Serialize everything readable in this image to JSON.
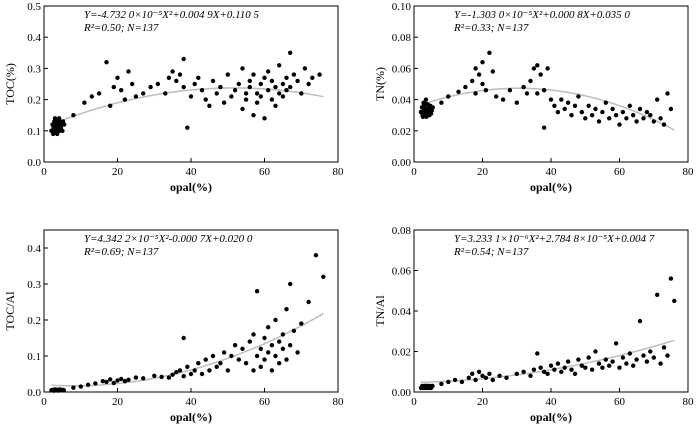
{
  "chart_data": [
    {
      "type": "scatter",
      "xlabel": "opal(%)",
      "ylabel": "TOC(%)",
      "xlim": [
        0,
        80
      ],
      "ylim": [
        0,
        0.5
      ],
      "xticks": [
        "0",
        "20",
        "40",
        "60",
        "80"
      ],
      "yticks": [
        "0.0",
        "0.1",
        "0.2",
        "0.3",
        "0.4",
        "0.5"
      ],
      "equation": "Y=-4.732 0×10⁻⁵X²+0.004 9X+0.110 5",
      "stats": "R²=0.50; N=137",
      "fit": {
        "type": "quadratic",
        "a": -4.732e-05,
        "b": 0.0049,
        "c": 0.1105,
        "x_range": [
          2,
          76
        ]
      },
      "series": [
        {
          "x": [
            2.0,
            2.3,
            2.5,
            2.8,
            3.0,
            3.0,
            3.2,
            3.4,
            3.5,
            3.6,
            3.8,
            4.0,
            4.1,
            4.3,
            4.5,
            4.6,
            4.8,
            5.0,
            5.2,
            5.5,
            2.6,
            3.1,
            3.9,
            4.4,
            2.9,
            8,
            11,
            13,
            15,
            17,
            18,
            19,
            20,
            21,
            22,
            23,
            24,
            25,
            27,
            29,
            31,
            33,
            34,
            35,
            36,
            37,
            38,
            38,
            39,
            40,
            41,
            42,
            43,
            44,
            45,
            46,
            47,
            48,
            49,
            50,
            51,
            52,
            53,
            54,
            54,
            55,
            55,
            56,
            56,
            57,
            57,
            58,
            58,
            59,
            59,
            60,
            60,
            61,
            61,
            62,
            62,
            63,
            63,
            64,
            64,
            65,
            65,
            66,
            66,
            67,
            67,
            68,
            69,
            70,
            71,
            72,
            73,
            75
          ],
          "y": [
            0.1,
            0.12,
            0.09,
            0.13,
            0.11,
            0.14,
            0.1,
            0.12,
            0.13,
            0.09,
            0.11,
            0.12,
            0.14,
            0.1,
            0.13,
            0.11,
            0.12,
            0.1,
            0.13,
            0.12,
            0.11,
            0.1,
            0.13,
            0.11,
            0.12,
            0.15,
            0.19,
            0.21,
            0.22,
            0.32,
            0.18,
            0.24,
            0.27,
            0.23,
            0.2,
            0.29,
            0.25,
            0.21,
            0.22,
            0.24,
            0.25,
            0.22,
            0.27,
            0.29,
            0.26,
            0.28,
            0.24,
            0.33,
            0.11,
            0.21,
            0.25,
            0.27,
            0.23,
            0.2,
            0.18,
            0.26,
            0.22,
            0.24,
            0.19,
            0.28,
            0.21,
            0.23,
            0.25,
            0.17,
            0.3,
            0.22,
            0.2,
            0.26,
            0.24,
            0.15,
            0.28,
            0.22,
            0.19,
            0.25,
            0.21,
            0.27,
            0.14,
            0.23,
            0.29,
            0.2,
            0.26,
            0.24,
            0.18,
            0.22,
            0.31,
            0.25,
            0.21,
            0.27,
            0.23,
            0.35,
            0.24,
            0.28,
            0.26,
            0.22,
            0.3,
            0.25,
            0.27,
            0.28
          ]
        }
      ]
    },
    {
      "type": "scatter",
      "xlabel": "opal(%)",
      "ylabel": "TN(%)",
      "xlim": [
        0,
        80
      ],
      "ylim": [
        0,
        0.1
      ],
      "xticks": [
        "0",
        "20",
        "40",
        "60",
        "80"
      ],
      "yticks": [
        "0.00",
        "0.02",
        "0.04",
        "0.06",
        "0.08",
        "0.10"
      ],
      "equation": "Y=-1.303 0×10⁻⁵X²+0.000 8X+0.035 0",
      "stats": "R²=0.33; N=137",
      "fit": {
        "type": "quadratic",
        "a": -1.303e-05,
        "b": 0.0008,
        "c": 0.035,
        "x_range": [
          2,
          76
        ]
      },
      "series": [
        {
          "x": [
            2.0,
            2.3,
            2.5,
            2.8,
            3.0,
            3.0,
            3.2,
            3.4,
            3.5,
            3.6,
            3.8,
            4.0,
            4.1,
            4.3,
            4.5,
            4.6,
            4.8,
            5.0,
            5.2,
            5.5,
            2.6,
            3.1,
            3.9,
            4.4,
            2.9,
            8,
            10,
            13,
            15,
            17,
            18,
            18,
            19,
            20,
            20,
            21,
            22,
            23,
            24,
            26,
            28,
            30,
            32,
            33,
            34,
            35,
            36,
            36,
            37,
            38,
            38,
            39,
            40,
            41,
            42,
            43,
            44,
            45,
            46,
            47,
            48,
            49,
            50,
            51,
            52,
            53,
            54,
            55,
            56,
            57,
            58,
            59,
            60,
            61,
            62,
            63,
            64,
            65,
            66,
            67,
            68,
            69,
            70,
            71,
            72,
            73,
            74,
            75
          ],
          "y": [
            0.032,
            0.035,
            0.03,
            0.038,
            0.033,
            0.036,
            0.031,
            0.034,
            0.04,
            0.029,
            0.033,
            0.037,
            0.032,
            0.035,
            0.03,
            0.034,
            0.036,
            0.031,
            0.033,
            0.035,
            0.029,
            0.038,
            0.032,
            0.034,
            0.036,
            0.038,
            0.042,
            0.045,
            0.048,
            0.052,
            0.06,
            0.044,
            0.056,
            0.05,
            0.064,
            0.046,
            0.07,
            0.058,
            0.042,
            0.04,
            0.046,
            0.038,
            0.048,
            0.044,
            0.052,
            0.06,
            0.062,
            0.044,
            0.056,
            0.046,
            0.022,
            0.06,
            0.04,
            0.036,
            0.032,
            0.04,
            0.034,
            0.038,
            0.03,
            0.036,
            0.042,
            0.032,
            0.028,
            0.036,
            0.03,
            0.034,
            0.026,
            0.032,
            0.038,
            0.028,
            0.034,
            0.03,
            0.024,
            0.032,
            0.028,
            0.036,
            0.03,
            0.026,
            0.034,
            0.028,
            0.032,
            0.03,
            0.026,
            0.04,
            0.028,
            0.024,
            0.044,
            0.034
          ]
        }
      ]
    },
    {
      "type": "scatter",
      "xlabel": "opal(%)",
      "ylabel": "TOC/Al",
      "xlim": [
        0,
        80
      ],
      "ylim": [
        0,
        0.45
      ],
      "xticks": [
        "0",
        "20",
        "40",
        "60",
        "80"
      ],
      "yticks": [
        "0.0",
        "0.1",
        "0.2",
        "0.3",
        "0.4"
      ],
      "equation": "Y=4.342 2×10⁻⁵X²-0.000 7X+0.020 0",
      "stats": "R²=0.69; N=137",
      "fit": {
        "type": "quadratic",
        "a": 4.3422e-05,
        "b": -0.0007,
        "c": 0.02,
        "x_range": [
          2,
          76
        ]
      },
      "series": [
        {
          "x": [
            2.0,
            2.4,
            2.7,
            3.0,
            3.2,
            3.5,
            3.8,
            4.0,
            4.3,
            4.6,
            5.0,
            5.4,
            2.8,
            3.6,
            4.4,
            8,
            10,
            12,
            14,
            16,
            17,
            18,
            19,
            20,
            21,
            22,
            23,
            25,
            27,
            30,
            32,
            34,
            35,
            36,
            37,
            38,
            38,
            39,
            40,
            41,
            42,
            43,
            44,
            45,
            46,
            47,
            48,
            49,
            50,
            51,
            52,
            53,
            54,
            55,
            56,
            57,
            57,
            58,
            58,
            59,
            59,
            60,
            60,
            61,
            61,
            62,
            62,
            63,
            63,
            64,
            64,
            65,
            65,
            66,
            66,
            67,
            67,
            68,
            69,
            70,
            72,
            74,
            76
          ],
          "y": [
            0.005,
            0.006,
            0.004,
            0.007,
            0.005,
            0.006,
            0.004,
            0.005,
            0.007,
            0.005,
            0.006,
            0.005,
            0.004,
            0.006,
            0.005,
            0.012,
            0.015,
            0.02,
            0.024,
            0.03,
            0.028,
            0.035,
            0.025,
            0.032,
            0.036,
            0.03,
            0.034,
            0.04,
            0.038,
            0.045,
            0.042,
            0.04,
            0.048,
            0.055,
            0.06,
            0.044,
            0.15,
            0.07,
            0.05,
            0.06,
            0.08,
            0.05,
            0.09,
            0.06,
            0.1,
            0.07,
            0.08,
            0.11,
            0.06,
            0.1,
            0.13,
            0.09,
            0.12,
            0.08,
            0.14,
            0.06,
            0.16,
            0.1,
            0.28,
            0.12,
            0.07,
            0.15,
            0.09,
            0.18,
            0.11,
            0.13,
            0.06,
            0.2,
            0.1,
            0.14,
            0.08,
            0.16,
            0.12,
            0.23,
            0.09,
            0.3,
            0.13,
            0.17,
            0.11,
            0.19,
            0.25,
            0.38,
            0.32
          ]
        }
      ]
    },
    {
      "type": "scatter",
      "xlabel": "opal(%)",
      "ylabel": "TN/Al",
      "xlim": [
        0,
        80
      ],
      "ylim": [
        0,
        0.08
      ],
      "xticks": [
        "0",
        "20",
        "40",
        "60",
        "80"
      ],
      "yticks": [
        "0.00",
        "0.02",
        "0.04",
        "0.06",
        "0.08"
      ],
      "equation": "Y=3.233 1×10⁻⁶X²+2.784 8×10⁻⁵X+0.004 7",
      "stats": "R²=0.54; N=137",
      "fit": {
        "type": "quadratic",
        "a": 3.2331e-06,
        "b": 2.7848e-05,
        "c": 0.0047,
        "x_range": [
          2,
          76
        ]
      },
      "series": [
        {
          "x": [
            2.0,
            2.4,
            2.7,
            3.0,
            3.2,
            3.5,
            3.8,
            4.0,
            4.3,
            4.6,
            5.0,
            5.4,
            2.8,
            3.6,
            4.4,
            8,
            10,
            12,
            14,
            16,
            17,
            18,
            19,
            20,
            21,
            22,
            23,
            25,
            27,
            30,
            32,
            34,
            35,
            36,
            37,
            38,
            39,
            40,
            41,
            42,
            43,
            44,
            45,
            46,
            47,
            48,
            49,
            50,
            51,
            52,
            53,
            54,
            55,
            56,
            57,
            58,
            59,
            60,
            61,
            62,
            63,
            64,
            65,
            66,
            67,
            68,
            69,
            70,
            71,
            72,
            73,
            74,
            75,
            76
          ],
          "y": [
            0.002,
            0.003,
            0.002,
            0.003,
            0.002,
            0.003,
            0.002,
            0.003,
            0.002,
            0.003,
            0.002,
            0.003,
            0.002,
            0.003,
            0.002,
            0.004,
            0.005,
            0.006,
            0.005,
            0.007,
            0.009,
            0.006,
            0.01,
            0.008,
            0.007,
            0.009,
            0.006,
            0.008,
            0.007,
            0.009,
            0.01,
            0.008,
            0.011,
            0.019,
            0.012,
            0.01,
            0.009,
            0.013,
            0.011,
            0.014,
            0.01,
            0.012,
            0.015,
            0.011,
            0.009,
            0.016,
            0.013,
            0.012,
            0.017,
            0.011,
            0.02,
            0.014,
            0.012,
            0.016,
            0.013,
            0.015,
            0.024,
            0.012,
            0.017,
            0.014,
            0.019,
            0.013,
            0.016,
            0.035,
            0.018,
            0.015,
            0.02,
            0.017,
            0.048,
            0.014,
            0.022,
            0.018,
            0.056,
            0.045
          ]
        }
      ]
    }
  ]
}
